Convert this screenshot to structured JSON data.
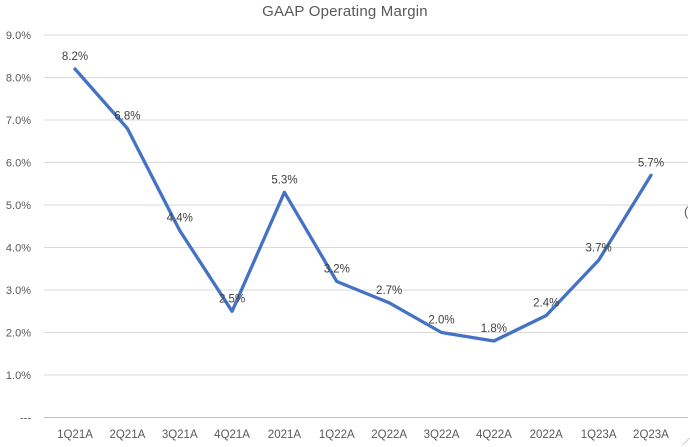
{
  "chart_data": {
    "type": "line",
    "title": "GAAP Operating Margin",
    "categories": [
      "1Q21A",
      "2Q21A",
      "3Q21A",
      "4Q21A",
      "2021A",
      "1Q22A",
      "2Q22A",
      "3Q22A",
      "4Q22A",
      "2022A",
      "1Q23A",
      "2Q23A"
    ],
    "values": [
      8.2,
      6.8,
      4.4,
      2.5,
      5.3,
      3.2,
      2.7,
      2.0,
      1.8,
      2.4,
      3.7,
      5.7
    ],
    "data_labels": [
      "8.2%",
      "6.8%",
      "4.4%",
      "2.5%",
      "5.3%",
      "3.2%",
      "2.7%",
      "2.0%",
      "1.8%",
      "2.4%",
      "3.7%",
      "5.7%"
    ],
    "xlabel": "",
    "ylabel": "",
    "ylim": [
      0,
      9
    ],
    "y_tick_interval": 1,
    "grid": "horizontal",
    "legend": "none",
    "data_label_position": "above"
  },
  "y_axis": {
    "tick_labels": [
      "9.0%",
      "8.0%",
      "7.0%",
      "6.0%",
      "5.0%",
      "4.0%",
      "3.0%",
      "2.0%",
      "1.0%",
      "---"
    ]
  },
  "edge_fragments": {
    "left_text": ")",
    "right_text": "("
  },
  "colors": {
    "series_line": "#4472C4",
    "gridline": "#D9D9D9",
    "axis_line": "#BFBFBF",
    "title_text": "#595959",
    "tick_text": "#595959",
    "data_label_text": "#404040",
    "background": "#FFFFFF"
  }
}
